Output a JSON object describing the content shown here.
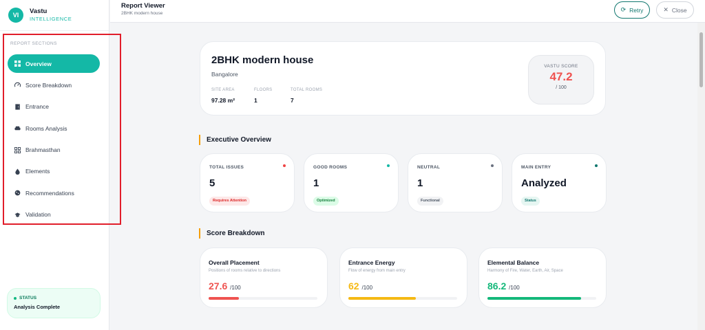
{
  "brand": {
    "initials": "VI",
    "name": "Vastu",
    "subtitle": "INTELLIGENCE"
  },
  "sidebar": {
    "section_label": "REPORT SECTIONS",
    "items": [
      {
        "label": "Overview",
        "icon": "grid-icon",
        "active": true
      },
      {
        "label": "Score Breakdown",
        "icon": "gauge-icon"
      },
      {
        "label": "Entrance",
        "icon": "door-icon"
      },
      {
        "label": "Rooms Analysis",
        "icon": "sofa-icon"
      },
      {
        "label": "Brahmasthan",
        "icon": "center-grid-icon"
      },
      {
        "label": "Elements",
        "icon": "drop-icon"
      },
      {
        "label": "Recommendations",
        "icon": "cookie-icon"
      },
      {
        "label": "Validation",
        "icon": "hat-icon"
      }
    ],
    "status": {
      "label": "STATUS",
      "text": "Analysis Complete"
    }
  },
  "header": {
    "title": "Report Viewer",
    "subtitle": "2BHK modern house",
    "retry_label": "Retry",
    "close_label": "Close"
  },
  "property": {
    "title": "2BHK modern house",
    "city": "Bangalore",
    "stats": [
      {
        "label": "SITE AREA",
        "value": "97.28 m²"
      },
      {
        "label": "FLOORS",
        "value": "1"
      },
      {
        "label": "TOTAL ROOMS",
        "value": "7"
      }
    ],
    "score_label": "VASTU SCORE",
    "score": "47.2",
    "score_max": "/ 100"
  },
  "executive": {
    "heading": "Executive Overview",
    "cards": [
      {
        "label": "TOTAL ISSUES",
        "value": "5",
        "pill": "Requires Attention",
        "dot_color": "#ef4444",
        "pill_bg": "#fde8e8",
        "pill_fg": "#dc2626"
      },
      {
        "label": "GOOD ROOMS",
        "value": "1",
        "pill": "Optimized",
        "dot_color": "#14b8a6",
        "pill_bg": "#dcfce7",
        "pill_fg": "#15803d"
      },
      {
        "label": "NEUTRAL",
        "value": "1",
        "pill": "Functional",
        "dot_color": "#6b7280",
        "pill_bg": "#f1f2f4",
        "pill_fg": "#4b5563"
      },
      {
        "label": "MAIN ENTRY",
        "value": "Analyzed",
        "pill": "Status",
        "dot_color": "#0f766e",
        "pill_bg": "#e6f6f2",
        "pill_fg": "#0f766e"
      }
    ]
  },
  "score_breakdown": {
    "heading": "Score Breakdown",
    "cards": [
      {
        "title": "Overall Placement",
        "desc": "Positions of rooms relative to directions",
        "score": "27.6",
        "max": "/100",
        "progress": 0.276,
        "color": "#ef5350"
      },
      {
        "title": "Entrance Energy",
        "desc": "Flow of energy from main entry",
        "score": "62",
        "max": "/100",
        "progress": 0.62,
        "color": "#f5b914"
      },
      {
        "title": "Elemental Balance",
        "desc": "Harmony of Fire, Water, Earth, Air, Space",
        "score": "86.2",
        "max": "/100",
        "progress": 0.862,
        "color": "#14b87a"
      }
    ]
  }
}
